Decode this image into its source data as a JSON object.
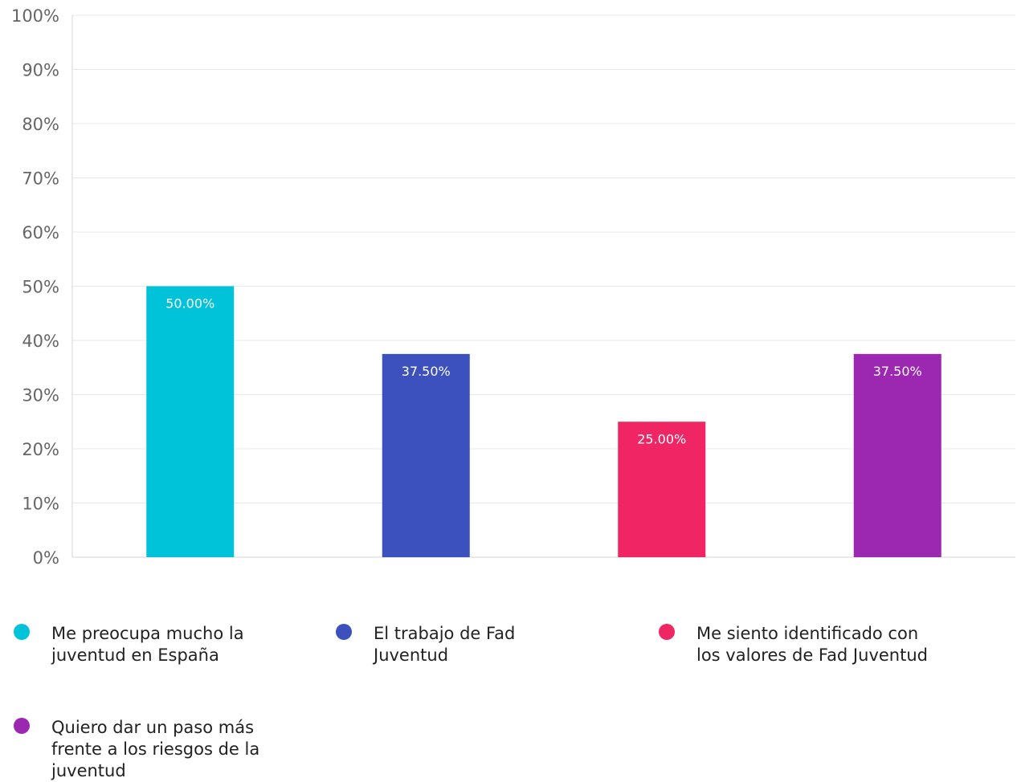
{
  "chart_data": {
    "type": "bar",
    "categories": [
      "Me preocupa mucho la juventud en España",
      "El trabajo de Fad Juventud",
      "Me siento identificado con los valores de Fad Juventud",
      "Quiero dar un paso más frente a los riesgos de la juventud"
    ],
    "values": [
      50.0,
      37.5,
      25.0,
      37.5
    ],
    "data_labels": [
      "50.00%",
      "37.50%",
      "25.00%",
      "37.50%"
    ],
    "colors": [
      "#00C2D9",
      "#3C50BE",
      "#F02664",
      "#9C27B0"
    ],
    "ylim": [
      0,
      100
    ],
    "yticks": [
      "0%",
      "10%",
      "20%",
      "30%",
      "40%",
      "50%",
      "60%",
      "70%",
      "80%",
      "90%",
      "100%"
    ],
    "xlabel": "",
    "ylabel": "",
    "grid": true,
    "legend_position": "bottom"
  },
  "legend": {
    "items": [
      {
        "label": "Me preocupa mucho la juventud en España",
        "color": "#00C2D9"
      },
      {
        "label": "El trabajo de Fad Juventud",
        "color": "#3C50BE"
      },
      {
        "label": "Me siento identificado con los valores de Fad Juventud",
        "color": "#F02664"
      },
      {
        "label": "Quiero dar un paso más frente a los riesgos de la juventud",
        "color": "#9C27B0"
      }
    ]
  }
}
